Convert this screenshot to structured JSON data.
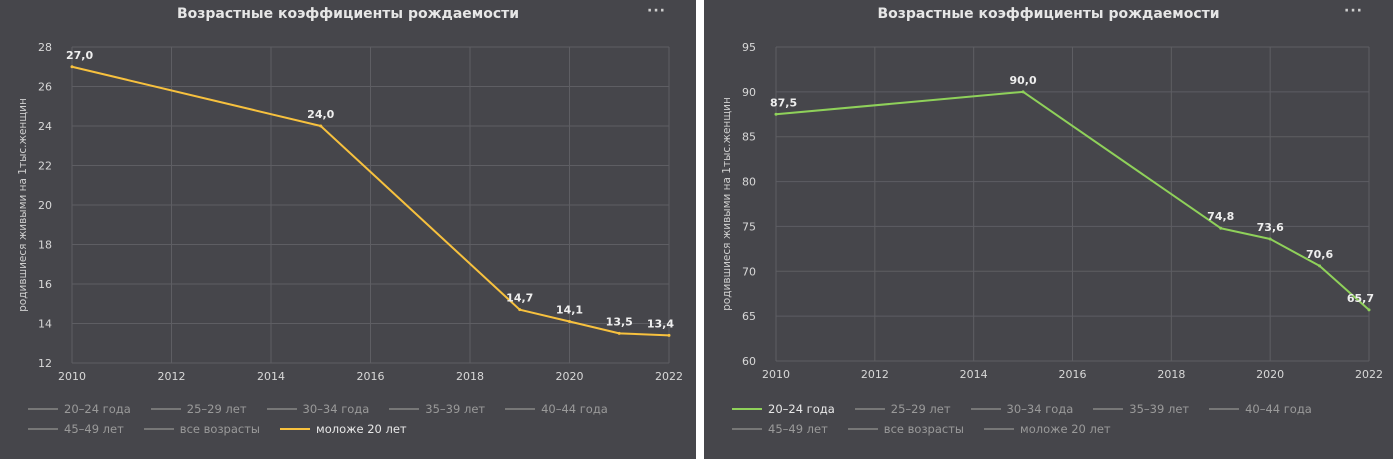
{
  "panels": [
    {
      "title": "Возрастные коэффициенты рождаемости",
      "menu": "···",
      "legend_rows": [
        [
          "20–24 года",
          "25–29 лет",
          "30–34 года",
          "35–39 лет",
          "40–44 года"
        ],
        [
          "45–49 лет",
          "все возрасты",
          "моложе 20 лет"
        ]
      ],
      "active_series": "моложе 20 лет",
      "chart_data": {
        "type": "line",
        "ylabel": "родившиеся живыми на 1тыс.женщин",
        "xlim": [
          2010,
          2022
        ],
        "ylim": [
          12,
          28
        ],
        "xticks": [
          2010,
          2012,
          2014,
          2016,
          2018,
          2020,
          2022
        ],
        "yticks": [
          12,
          14,
          16,
          18,
          20,
          22,
          24,
          26,
          28
        ],
        "grid": true,
        "legend_position": "bottom",
        "series": [
          {
            "name": "моложе 20 лет",
            "color": "#f7c13e",
            "x": [
              2010,
              2015,
              2019,
              2020,
              2021,
              2022
            ],
            "y": [
              27.0,
              24.0,
              14.7,
              14.1,
              13.5,
              13.4
            ],
            "labels": [
              "27,0",
              "24,0",
              "14,7",
              "14,1",
              "13,5",
              "13,4"
            ]
          }
        ]
      }
    },
    {
      "title": "Возрастные коэффициенты рождаемости",
      "menu": "···",
      "legend_rows": [
        [
          "20–24 года",
          "25–29 лет",
          "30–34 года",
          "35–39 лет",
          "40–44 года"
        ],
        [
          "45–49 лет",
          "все возрасты",
          "моложе 20 лет"
        ]
      ],
      "active_series": "20–24 года",
      "chart_data": {
        "type": "line",
        "ylabel": "родившиеся живыми на 1тыс.женщин",
        "xlim": [
          2010,
          2022
        ],
        "ylim": [
          60,
          95
        ],
        "xticks": [
          2010,
          2012,
          2014,
          2016,
          2018,
          2020,
          2022
        ],
        "yticks": [
          60,
          65,
          70,
          75,
          80,
          85,
          90,
          95
        ],
        "grid": true,
        "legend_position": "bottom",
        "series": [
          {
            "name": "20–24 года",
            "color": "#8fd15a",
            "x": [
              2010,
              2015,
              2019,
              2020,
              2021,
              2022
            ],
            "y": [
              87.5,
              90.0,
              74.8,
              73.6,
              70.6,
              65.7
            ],
            "labels": [
              "87,5",
              "90,0",
              "74,8",
              "73,6",
              "70,6",
              "65,7"
            ]
          }
        ]
      }
    }
  ]
}
